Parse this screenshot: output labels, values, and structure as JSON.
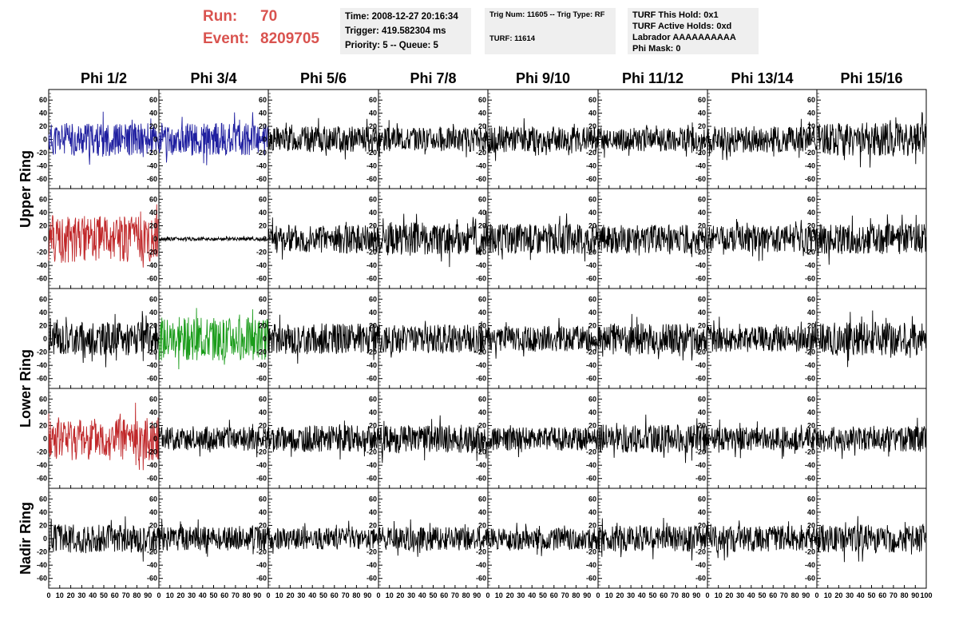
{
  "header": {
    "run_label": "Run:",
    "run_value": "70",
    "event_label": "Event:",
    "event_value": "8209705",
    "time": "Time: 2008-12-27 20:16:34",
    "trigger": "Trigger: 419.582304 ms",
    "priority": "Priority: 5 -- Queue: 5",
    "trig_num": "Trig Num: 11605 -- Trig Type: RF",
    "turf": "TURF: 11614",
    "turf_this_hold": "TURF This Hold: 0x1",
    "turf_active_holds": "TURF Active Holds: 0xd",
    "labrador": "Labrador AAAAAAAAAA",
    "phi_mask": "Phi Mask: 0"
  },
  "chart_data": {
    "type": "line",
    "columns": [
      "Phi 1/2",
      "Phi 3/4",
      "Phi 5/6",
      "Phi 7/8",
      "Phi 9/10",
      "Phi 11/12",
      "Phi 13/14",
      "Phi 15/16"
    ],
    "rows": [
      "Upper Ring",
      "Upper Ring",
      "Lower Ring",
      "Lower Ring",
      "Nadir Ring"
    ],
    "row_labels": [
      {
        "text": "Upper Ring",
        "rows": [
          0,
          1
        ]
      },
      {
        "text": "Lower Ring",
        "rows": [
          2,
          3
        ]
      },
      {
        "text": "Nadir Ring",
        "rows": [
          4
        ]
      }
    ],
    "xlim": [
      0,
      100
    ],
    "ylim": [
      -70,
      70
    ],
    "x_ticks": [
      0,
      10,
      20,
      30,
      40,
      50,
      60,
      70,
      80,
      90
    ],
    "x_tick_labels_last_panel": [
      0,
      10,
      20,
      30,
      40,
      50,
      60,
      70,
      80,
      90,
      100
    ],
    "y_ticks": [
      -60,
      -40,
      -20,
      0,
      20,
      40,
      60
    ],
    "grid": false,
    "colors": {
      "black": "#000000",
      "blue": "#1f1fa0",
      "red": "#c0282a",
      "green": "#1a9c1a"
    },
    "panels": [
      [
        {
          "color": "blue",
          "amp": 14,
          "seed": 11
        },
        {
          "color": "blue",
          "amp": 14,
          "seed": 12
        },
        {
          "color": "black",
          "amp": 11,
          "seed": 13
        },
        {
          "color": "black",
          "amp": 10,
          "seed": 14
        },
        {
          "color": "black",
          "amp": 11,
          "seed": 15
        },
        {
          "color": "black",
          "amp": 10,
          "seed": 16
        },
        {
          "color": "black",
          "amp": 11,
          "seed": 17
        },
        {
          "color": "black",
          "amp": 14,
          "seed": 18
        }
      ],
      [
        {
          "color": "red",
          "amp": 20,
          "seed": 21
        },
        {
          "color": "black",
          "amp": 1.5,
          "seed": 22
        },
        {
          "color": "black",
          "amp": 12,
          "seed": 23
        },
        {
          "color": "black",
          "amp": 14,
          "seed": 24
        },
        {
          "color": "black",
          "amp": 13,
          "seed": 25
        },
        {
          "color": "black",
          "amp": 12,
          "seed": 26
        },
        {
          "color": "black",
          "amp": 11,
          "seed": 27
        },
        {
          "color": "black",
          "amp": 13,
          "seed": 28
        }
      ],
      [
        {
          "color": "black",
          "amp": 14,
          "seed": 31
        },
        {
          "color": "green",
          "amp": 18,
          "seed": 32
        },
        {
          "color": "black",
          "amp": 13,
          "seed": 33
        },
        {
          "color": "black",
          "amp": 12,
          "seed": 34
        },
        {
          "color": "black",
          "amp": 11,
          "seed": 35
        },
        {
          "color": "black",
          "amp": 13,
          "seed": 36
        },
        {
          "color": "black",
          "amp": 11,
          "seed": 37
        },
        {
          "color": "black",
          "amp": 14,
          "seed": 38
        }
      ],
      [
        {
          "color": "red",
          "amp": 18,
          "seed": 41
        },
        {
          "color": "black",
          "amp": 10,
          "seed": 42
        },
        {
          "color": "black",
          "amp": 11,
          "seed": 43
        },
        {
          "color": "black",
          "amp": 12,
          "seed": 44
        },
        {
          "color": "black",
          "amp": 10,
          "seed": 45
        },
        {
          "color": "black",
          "amp": 12,
          "seed": 46
        },
        {
          "color": "black",
          "amp": 10,
          "seed": 47
        },
        {
          "color": "black",
          "amp": 11,
          "seed": 48
        }
      ],
      [
        {
          "color": "black",
          "amp": 12,
          "seed": 51
        },
        {
          "color": "black",
          "amp": 10,
          "seed": 52
        },
        {
          "color": "black",
          "amp": 9,
          "seed": 53
        },
        {
          "color": "black",
          "amp": 10,
          "seed": 54
        },
        {
          "color": "black",
          "amp": 9,
          "seed": 55
        },
        {
          "color": "black",
          "amp": 11,
          "seed": 56
        },
        {
          "color": "black",
          "amp": 11,
          "seed": 57
        },
        {
          "color": "black",
          "amp": 12,
          "seed": 58
        }
      ]
    ]
  }
}
